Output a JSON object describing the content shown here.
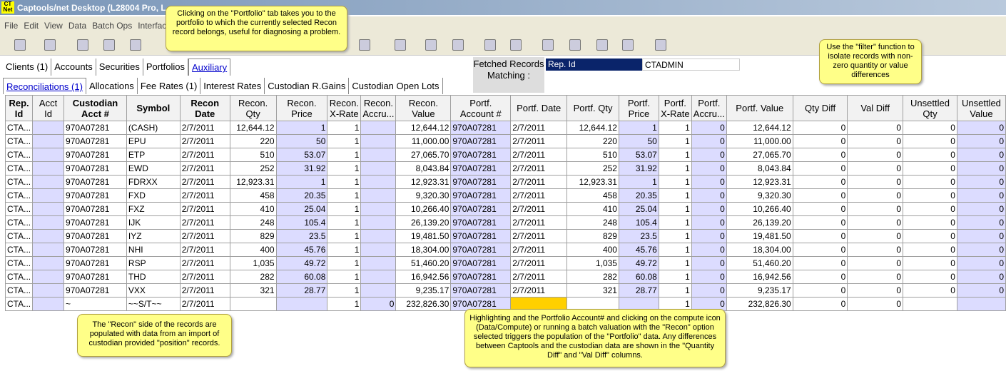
{
  "window": {
    "title": "Captools/net Desktop  (L28004 Pro, L"
  },
  "menu": [
    "File",
    "Edit",
    "View",
    "Data",
    "Batch Ops",
    "Interfaces"
  ],
  "tabs_top": [
    "Clients (1)",
    "Accounts",
    "Securities",
    "Portfolios",
    "Auxiliary"
  ],
  "tabs_sub": [
    "Reconciliations (1)",
    "Allocations",
    "Fee Rates (1)",
    "Interest Rates",
    "Custodian R.Gains",
    "Custodian Open Lots"
  ],
  "filter": {
    "label": "Fetched Records Matching :",
    "field": "Rep. Id",
    "value": "CTADMIN"
  },
  "table": {
    "headers": [
      "Rep. Id",
      "Acct Id",
      "Custodian Acct #",
      "Symbol",
      "Recon Date",
      "Recon. Qty",
      "Recon. Price",
      "Recon. X-Rate",
      "Recon. Accru...",
      "Recon. Value",
      "Portf. Account #",
      "Portf. Date",
      "Portf. Qty",
      "Portf. Price",
      "Portf. X-Rate",
      "Portf. Accru...",
      "Portf. Value",
      "Qty Diff",
      "Val Diff",
      "Unsettled Qty",
      "Unsettled Value"
    ],
    "rows": [
      [
        "CTA...",
        null,
        "970A07281",
        "(CASH)",
        "2/7/2011",
        "12,644.12",
        "1",
        "1",
        null,
        "12,644.12",
        "970A07281",
        "2/7/2011",
        "12,644.12",
        "1",
        "1",
        "0",
        "12,644.12",
        "0",
        "0",
        "0",
        "0"
      ],
      [
        "CTA...",
        null,
        "970A07281",
        "EPU",
        "2/7/2011",
        "220",
        "50",
        "1",
        null,
        "11,000.00",
        "970A07281",
        "2/7/2011",
        "220",
        "50",
        "1",
        "0",
        "11,000.00",
        "0",
        "0",
        "0",
        "0"
      ],
      [
        "CTA...",
        null,
        "970A07281",
        "ETP",
        "2/7/2011",
        "510",
        "53.07",
        "1",
        null,
        "27,065.70",
        "970A07281",
        "2/7/2011",
        "510",
        "53.07",
        "1",
        "0",
        "27,065.70",
        "0",
        "0",
        "0",
        "0"
      ],
      [
        "CTA...",
        null,
        "970A07281",
        "EWD",
        "2/7/2011",
        "252",
        "31.92",
        "1",
        null,
        "8,043.84",
        "970A07281",
        "2/7/2011",
        "252",
        "31.92",
        "1",
        "0",
        "8,043.84",
        "0",
        "0",
        "0",
        "0"
      ],
      [
        "CTA...",
        null,
        "970A07281",
        "FDRXX",
        "2/7/2011",
        "12,923.31",
        "1",
        "1",
        null,
        "12,923.31",
        "970A07281",
        "2/7/2011",
        "12,923.31",
        "1",
        "1",
        "0",
        "12,923.31",
        "0",
        "0",
        "0",
        "0"
      ],
      [
        "CTA...",
        null,
        "970A07281",
        "FXD",
        "2/7/2011",
        "458",
        "20.35",
        "1",
        null,
        "9,320.30",
        "970A07281",
        "2/7/2011",
        "458",
        "20.35",
        "1",
        "0",
        "9,320.30",
        "0",
        "0",
        "0",
        "0"
      ],
      [
        "CTA...",
        null,
        "970A07281",
        "FXZ",
        "2/7/2011",
        "410",
        "25.04",
        "1",
        null,
        "10,266.40",
        "970A07281",
        "2/7/2011",
        "410",
        "25.04",
        "1",
        "0",
        "10,266.40",
        "0",
        "0",
        "0",
        "0"
      ],
      [
        "CTA...",
        null,
        "970A07281",
        "IJK",
        "2/7/2011",
        "248",
        "105.4",
        "1",
        null,
        "26,139.20",
        "970A07281",
        "2/7/2011",
        "248",
        "105.4",
        "1",
        "0",
        "26,139.20",
        "0",
        "0",
        "0",
        "0"
      ],
      [
        "CTA...",
        null,
        "970A07281",
        "IYZ",
        "2/7/2011",
        "829",
        "23.5",
        "1",
        null,
        "19,481.50",
        "970A07281",
        "2/7/2011",
        "829",
        "23.5",
        "1",
        "0",
        "19,481.50",
        "0",
        "0",
        "0",
        "0"
      ],
      [
        "CTA...",
        null,
        "970A07281",
        "NHI",
        "2/7/2011",
        "400",
        "45.76",
        "1",
        null,
        "18,304.00",
        "970A07281",
        "2/7/2011",
        "400",
        "45.76",
        "1",
        "0",
        "18,304.00",
        "0",
        "0",
        "0",
        "0"
      ],
      [
        "CTA...",
        null,
        "970A07281",
        "RSP",
        "2/7/2011",
        "1,035",
        "49.72",
        "1",
        null,
        "51,460.20",
        "970A07281",
        "2/7/2011",
        "1,035",
        "49.72",
        "1",
        "0",
        "51,460.20",
        "0",
        "0",
        "0",
        "0"
      ],
      [
        "CTA...",
        null,
        "970A07281",
        "THD",
        "2/7/2011",
        "282",
        "60.08",
        "1",
        null,
        "16,942.56",
        "970A07281",
        "2/7/2011",
        "282",
        "60.08",
        "1",
        "0",
        "16,942.56",
        "0",
        "0",
        "0",
        "0"
      ],
      [
        "CTA...",
        null,
        "970A07281",
        "VXX",
        "2/7/2011",
        "321",
        "28.77",
        "1",
        null,
        "9,235.17",
        "970A07281",
        "2/7/2011",
        "321",
        "28.77",
        "1",
        "0",
        "9,235.17",
        "0",
        "0",
        "0",
        "0"
      ],
      [
        "CTA...",
        null,
        "~",
        "~~S/T~~",
        "2/7/2011",
        null,
        null,
        "1",
        "0",
        "232,826.30",
        "970A07281",
        null,
        null,
        null,
        "1",
        "0",
        "232,826.30",
        "0",
        "0",
        null,
        null
      ]
    ]
  },
  "callouts": [
    "Clicking on the \"Portfolio\" tab takes you to the portfolio to which the currently selected Recon record belongs, useful for diagnosing a problem.",
    "Use the \"filter\" function to isolate records with non-zero quantity or value differences",
    "The \"Recon\" side of the records are populated with data from an import of custodian provided \"position\" records.",
    "Highlighting and the Portfolio Account# and clicking on the compute icon (Data/Compute) or running a batch valuation with the \"Recon\" option selected triggers  the population of the \"Portfolio\" data.  Any differences between Captools and the custodian data are shown in the \"Quantity Diff\" and \"Val Diff\" columns."
  ]
}
